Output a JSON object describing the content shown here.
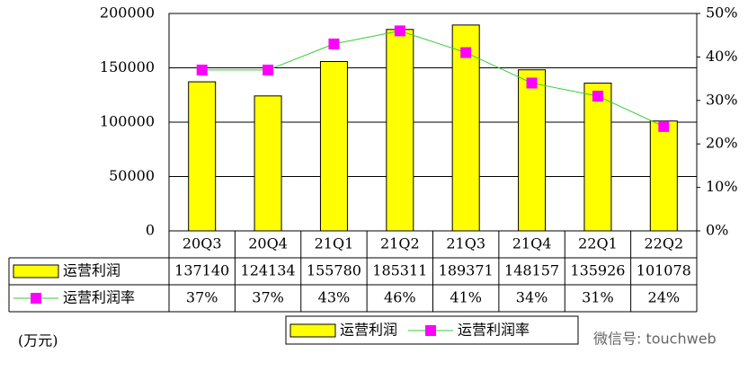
{
  "chart_data": {
    "type": "bar_line_table",
    "categories": [
      "20Q3",
      "20Q4",
      "21Q1",
      "21Q2",
      "21Q3",
      "21Q4",
      "22Q1",
      "22Q2"
    ],
    "series": [
      {
        "name": "运营利润",
        "color": "#ffff00",
        "values": [
          137140,
          124134,
          155780,
          185311,
          189371,
          148157,
          135926,
          101078
        ]
      },
      {
        "name": "运营利润率",
        "color": "#ff00ff",
        "line_color": "#33cc33",
        "axis": "y2",
        "values": [
          37,
          37,
          43,
          46,
          41,
          34,
          31,
          24
        ],
        "value_labels": [
          "37%",
          "37%",
          "43%",
          "46%",
          "41%",
          "34%",
          "31%",
          "24%"
        ]
      }
    ],
    "ylim": [
      0,
      200000
    ],
    "yticks": [
      0,
      50000,
      100000,
      150000,
      200000
    ],
    "y2lim": [
      0,
      50
    ],
    "y2ticks": [
      {
        "value": 0,
        "label": "0%"
      },
      {
        "value": 10,
        "label": "10%"
      },
      {
        "value": 20,
        "label": "20%"
      },
      {
        "value": 30,
        "label": "30%"
      },
      {
        "value": 40,
        "label": "40%"
      },
      {
        "value": 50,
        "label": "50%"
      }
    ],
    "grid": true,
    "unit_note": "(万元)",
    "watermark": "微信号: touchweb"
  }
}
